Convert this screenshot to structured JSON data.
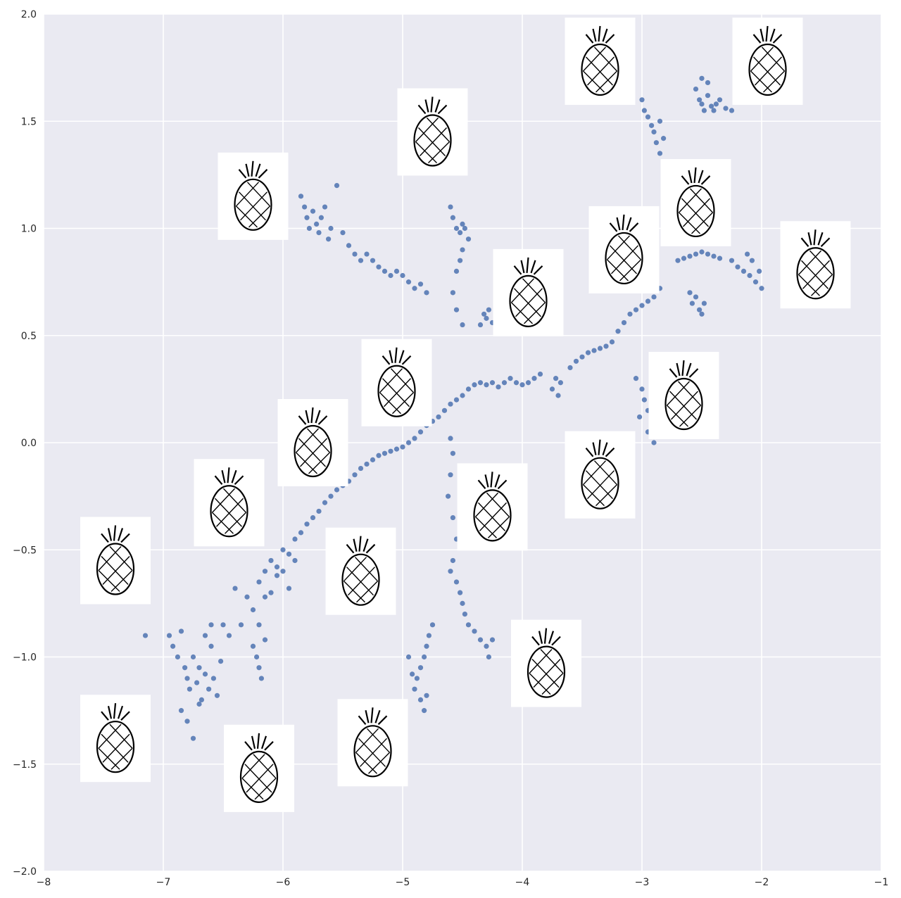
{
  "chart_data": {
    "type": "scatter",
    "title": "",
    "xlabel": "",
    "ylabel": "",
    "xlim": [
      -8,
      -1
    ],
    "ylim": [
      -2,
      2
    ],
    "grid": true,
    "legend": "none",
    "colors": {
      "background": "#eaeaf2",
      "grid": "#ffffff",
      "point": "#4c72b0"
    },
    "x_ticks": [
      {
        "value": -8,
        "label": "−8"
      },
      {
        "value": -7,
        "label": "−7"
      },
      {
        "value": -6,
        "label": "−6"
      },
      {
        "value": -5,
        "label": "−5"
      },
      {
        "value": -4,
        "label": "−4"
      },
      {
        "value": -3,
        "label": "−3"
      },
      {
        "value": -2,
        "label": "−2"
      },
      {
        "value": -1,
        "label": "−1"
      }
    ],
    "y_ticks": [
      {
        "value": -2.0,
        "label": "−2.0"
      },
      {
        "value": -1.5,
        "label": "−1.5"
      },
      {
        "value": -1.0,
        "label": "−1.0"
      },
      {
        "value": -0.5,
        "label": "−0.5"
      },
      {
        "value": 0.0,
        "label": "0.0"
      },
      {
        "value": 0.5,
        "label": "0.5"
      },
      {
        "value": 1.0,
        "label": "1.0"
      },
      {
        "value": 1.5,
        "label": "1.5"
      },
      {
        "value": 2.0,
        "label": "2.0"
      }
    ],
    "series": [
      {
        "points": [
          [
            -7.15,
            -0.9
          ],
          [
            -6.95,
            -0.9
          ],
          [
            -6.92,
            -0.95
          ],
          [
            -6.88,
            -1.0
          ],
          [
            -6.85,
            -0.88
          ],
          [
            -6.82,
            -1.05
          ],
          [
            -6.8,
            -1.1
          ],
          [
            -6.78,
            -1.15
          ],
          [
            -6.75,
            -1.0
          ],
          [
            -6.72,
            -1.12
          ],
          [
            -6.7,
            -1.05
          ],
          [
            -6.68,
            -1.2
          ],
          [
            -6.65,
            -1.08
          ],
          [
            -6.62,
            -1.15
          ],
          [
            -6.6,
            -0.95
          ],
          [
            -6.58,
            -1.1
          ],
          [
            -6.55,
            -1.18
          ],
          [
            -6.52,
            -1.02
          ],
          [
            -6.5,
            -0.85
          ],
          [
            -6.85,
            -1.25
          ],
          [
            -6.8,
            -1.3
          ],
          [
            -6.75,
            -1.38
          ],
          [
            -6.7,
            -1.22
          ],
          [
            -6.65,
            -0.9
          ],
          [
            -6.6,
            -0.85
          ],
          [
            -6.45,
            -0.9
          ],
          [
            -6.35,
            -0.85
          ],
          [
            -6.4,
            -0.68
          ],
          [
            -6.3,
            -0.72
          ],
          [
            -6.25,
            -0.78
          ],
          [
            -6.2,
            -0.65
          ],
          [
            -6.15,
            -0.6
          ],
          [
            -6.1,
            -0.55
          ],
          [
            -6.05,
            -0.62
          ],
          [
            -6.0,
            -0.5
          ],
          [
            -5.95,
            -0.52
          ],
          [
            -5.9,
            -0.45
          ],
          [
            -5.85,
            -0.42
          ],
          [
            -5.8,
            -0.38
          ],
          [
            -5.75,
            -0.35
          ],
          [
            -5.7,
            -0.32
          ],
          [
            -5.65,
            -0.28
          ],
          [
            -5.6,
            -0.25
          ],
          [
            -5.55,
            -0.22
          ],
          [
            -5.5,
            -0.2
          ],
          [
            -5.45,
            -0.18
          ],
          [
            -5.4,
            -0.15
          ],
          [
            -5.35,
            -0.12
          ],
          [
            -5.3,
            -0.1
          ],
          [
            -5.25,
            -0.08
          ],
          [
            -5.2,
            -0.06
          ],
          [
            -5.15,
            -0.05
          ],
          [
            -5.1,
            -0.04
          ],
          [
            -5.05,
            -0.03
          ],
          [
            -5.0,
            -0.02
          ],
          [
            -4.95,
            0.0
          ],
          [
            -4.9,
            0.02
          ],
          [
            -4.85,
            0.05
          ],
          [
            -4.8,
            0.08
          ],
          [
            -4.75,
            0.1
          ],
          [
            -4.7,
            0.12
          ],
          [
            -4.65,
            0.15
          ],
          [
            -4.6,
            0.18
          ],
          [
            -4.55,
            0.2
          ],
          [
            -4.5,
            0.22
          ],
          [
            -4.45,
            0.25
          ],
          [
            -4.4,
            0.27
          ],
          [
            -4.35,
            0.28
          ],
          [
            -4.3,
            0.27
          ],
          [
            -4.25,
            0.28
          ],
          [
            -4.2,
            0.26
          ],
          [
            -4.15,
            0.28
          ],
          [
            -4.1,
            0.3
          ],
          [
            -4.05,
            0.28
          ],
          [
            -4.0,
            0.27
          ],
          [
            -3.95,
            0.28
          ],
          [
            -3.9,
            0.3
          ],
          [
            -3.85,
            0.32
          ],
          [
            -6.25,
            -0.95
          ],
          [
            -6.22,
            -1.0
          ],
          [
            -6.2,
            -1.05
          ],
          [
            -6.18,
            -1.1
          ],
          [
            -6.15,
            -0.92
          ],
          [
            -6.2,
            -0.85
          ],
          [
            -6.15,
            -0.72
          ],
          [
            -6.1,
            -0.7
          ],
          [
            -6.05,
            -0.58
          ],
          [
            -6.0,
            -0.6
          ],
          [
            -5.95,
            -0.68
          ],
          [
            -5.9,
            -0.55
          ],
          [
            -3.75,
            0.25
          ],
          [
            -3.72,
            0.3
          ],
          [
            -3.7,
            0.22
          ],
          [
            -3.68,
            0.28
          ],
          [
            -3.6,
            0.35
          ],
          [
            -3.55,
            0.38
          ],
          [
            -3.5,
            0.4
          ],
          [
            -3.45,
            0.42
          ],
          [
            -3.4,
            0.43
          ],
          [
            -3.35,
            0.44
          ],
          [
            -3.3,
            0.45
          ],
          [
            -3.25,
            0.47
          ],
          [
            -3.2,
            0.52
          ],
          [
            -3.15,
            0.56
          ],
          [
            -3.1,
            0.6
          ],
          [
            -3.05,
            0.62
          ],
          [
            -3.0,
            0.64
          ],
          [
            -2.95,
            0.66
          ],
          [
            -2.9,
            0.68
          ],
          [
            -2.85,
            0.72
          ],
          [
            -3.05,
            0.3
          ],
          [
            -3.0,
            0.25
          ],
          [
            -2.98,
            0.2
          ],
          [
            -2.95,
            0.15
          ],
          [
            -2.92,
            0.1
          ],
          [
            -2.95,
            0.05
          ],
          [
            -2.9,
            0.0
          ],
          [
            -3.02,
            0.12
          ],
          [
            -4.6,
            0.02
          ],
          [
            -4.58,
            -0.05
          ],
          [
            -4.6,
            -0.15
          ],
          [
            -4.62,
            -0.25
          ],
          [
            -4.58,
            -0.35
          ],
          [
            -4.55,
            -0.45
          ],
          [
            -4.58,
            -0.55
          ],
          [
            -4.6,
            -0.6
          ],
          [
            -4.55,
            -0.65
          ],
          [
            -4.52,
            -0.7
          ],
          [
            -4.5,
            -0.75
          ],
          [
            -4.48,
            -0.8
          ],
          [
            -4.45,
            -0.85
          ],
          [
            -4.4,
            -0.88
          ],
          [
            -4.35,
            -0.92
          ],
          [
            -4.3,
            -0.95
          ],
          [
            -4.28,
            -1.0
          ],
          [
            -4.25,
            -0.92
          ],
          [
            -4.75,
            -0.85
          ],
          [
            -4.78,
            -0.9
          ],
          [
            -4.8,
            -0.95
          ],
          [
            -4.82,
            -1.0
          ],
          [
            -4.85,
            -1.05
          ],
          [
            -4.88,
            -1.1
          ],
          [
            -4.9,
            -1.15
          ],
          [
            -4.85,
            -1.2
          ],
          [
            -4.82,
            -1.25
          ],
          [
            -4.8,
            -1.18
          ],
          [
            -4.92,
            -1.08
          ],
          [
            -4.95,
            -1.0
          ],
          [
            -5.85,
            1.15
          ],
          [
            -5.82,
            1.1
          ],
          [
            -5.8,
            1.05
          ],
          [
            -5.78,
            1.0
          ],
          [
            -5.75,
            1.08
          ],
          [
            -5.72,
            1.02
          ],
          [
            -5.7,
            0.98
          ],
          [
            -5.68,
            1.05
          ],
          [
            -5.65,
            1.1
          ],
          [
            -5.62,
            0.95
          ],
          [
            -5.6,
            1.0
          ],
          [
            -5.55,
            1.2
          ],
          [
            -5.5,
            0.98
          ],
          [
            -5.45,
            0.92
          ],
          [
            -5.4,
            0.88
          ],
          [
            -5.35,
            0.85
          ],
          [
            -5.3,
            0.88
          ],
          [
            -5.25,
            0.85
          ],
          [
            -5.2,
            0.82
          ],
          [
            -5.15,
            0.8
          ],
          [
            -5.1,
            0.78
          ],
          [
            -5.05,
            0.8
          ],
          [
            -5.0,
            0.78
          ],
          [
            -4.95,
            0.75
          ],
          [
            -4.9,
            0.72
          ],
          [
            -4.85,
            0.74
          ],
          [
            -4.8,
            0.7
          ],
          [
            -4.6,
            1.1
          ],
          [
            -4.58,
            1.05
          ],
          [
            -4.55,
            1.0
          ],
          [
            -4.52,
            0.98
          ],
          [
            -4.5,
            1.02
          ],
          [
            -4.48,
            1.0
          ],
          [
            -4.45,
            0.95
          ],
          [
            -4.5,
            0.9
          ],
          [
            -4.52,
            0.85
          ],
          [
            -4.55,
            0.8
          ],
          [
            -4.58,
            0.7
          ],
          [
            -4.55,
            0.62
          ],
          [
            -4.5,
            0.55
          ],
          [
            -4.35,
            0.55
          ],
          [
            -4.32,
            0.6
          ],
          [
            -4.3,
            0.58
          ],
          [
            -4.28,
            0.62
          ],
          [
            -4.25,
            0.56
          ],
          [
            -3.0,
            1.6
          ],
          [
            -2.98,
            1.55
          ],
          [
            -2.95,
            1.52
          ],
          [
            -2.92,
            1.48
          ],
          [
            -2.9,
            1.45
          ],
          [
            -2.88,
            1.4
          ],
          [
            -2.85,
            1.35
          ],
          [
            -2.82,
            1.3
          ],
          [
            -2.8,
            1.25
          ],
          [
            -2.78,
            1.2
          ],
          [
            -2.75,
            1.15
          ],
          [
            -2.72,
            1.1
          ],
          [
            -2.7,
            1.05
          ],
          [
            -2.68,
            1.0
          ],
          [
            -2.65,
            0.95
          ],
          [
            -2.85,
            1.5
          ],
          [
            -2.82,
            1.42
          ],
          [
            -2.7,
            0.85
          ],
          [
            -2.65,
            0.86
          ],
          [
            -2.6,
            0.87
          ],
          [
            -2.55,
            0.88
          ],
          [
            -2.5,
            0.89
          ],
          [
            -2.45,
            0.88
          ],
          [
            -2.4,
            0.87
          ],
          [
            -2.35,
            0.86
          ],
          [
            -2.25,
            0.85
          ],
          [
            -2.2,
            0.82
          ],
          [
            -2.15,
            0.8
          ],
          [
            -2.1,
            0.78
          ],
          [
            -2.05,
            0.75
          ],
          [
            -2.0,
            0.72
          ],
          [
            -2.02,
            0.8
          ],
          [
            -2.08,
            0.85
          ],
          [
            -2.12,
            0.88
          ],
          [
            -2.6,
            0.7
          ],
          [
            -2.58,
            0.65
          ],
          [
            -2.55,
            0.68
          ],
          [
            -2.52,
            0.62
          ],
          [
            -2.5,
            0.6
          ],
          [
            -2.48,
            0.65
          ],
          [
            -2.55,
            1.65
          ],
          [
            -2.52,
            1.6
          ],
          [
            -2.5,
            1.58
          ],
          [
            -2.48,
            1.55
          ],
          [
            -2.45,
            1.62
          ],
          [
            -2.42,
            1.57
          ],
          [
            -2.4,
            1.55
          ],
          [
            -2.38,
            1.58
          ],
          [
            -2.35,
            1.6
          ],
          [
            -2.3,
            1.56
          ],
          [
            -2.25,
            1.55
          ],
          [
            -2.5,
            1.7
          ],
          [
            -2.45,
            1.68
          ]
        ]
      }
    ],
    "thumbnails": [
      {
        "name": "pineapple-sketch-1",
        "x": -3.35,
        "y": 1.78
      },
      {
        "name": "pineapple-sketch-2",
        "x": -1.95,
        "y": 1.78
      },
      {
        "name": "pineapple-sketch-3",
        "x": -4.75,
        "y": 1.45
      },
      {
        "name": "pineapple-sketch-4",
        "x": -6.25,
        "y": 1.15
      },
      {
        "name": "pineapple-sketch-5",
        "x": -2.55,
        "y": 1.12
      },
      {
        "name": "pineapple-sketch-6",
        "x": -3.15,
        "y": 0.9
      },
      {
        "name": "pineapple-sketch-7",
        "x": -1.55,
        "y": 0.83
      },
      {
        "name": "pineapple-sketch-8",
        "x": -3.95,
        "y": 0.7
      },
      {
        "name": "pineapple-sketch-9",
        "x": -2.65,
        "y": 0.22
      },
      {
        "name": "pineapple-sketch-10",
        "x": -5.05,
        "y": 0.28
      },
      {
        "name": "pineapple-sketch-11",
        "x": -5.75,
        "y": 0.0
      },
      {
        "name": "pineapple-sketch-12",
        "x": -3.35,
        "y": -0.15
      },
      {
        "name": "pineapple-sketch-13",
        "x": -4.25,
        "y": -0.3
      },
      {
        "name": "pineapple-sketch-14",
        "x": -6.45,
        "y": -0.28
      },
      {
        "name": "pineapple-sketch-15",
        "x": -7.4,
        "y": -0.55
      },
      {
        "name": "pineapple-sketch-16",
        "x": -5.35,
        "y": -0.6
      },
      {
        "name": "pineapple-sketch-17",
        "x": -3.8,
        "y": -1.03
      },
      {
        "name": "pineapple-sketch-18",
        "x": -7.4,
        "y": -1.38
      },
      {
        "name": "pineapple-sketch-19",
        "x": -5.25,
        "y": -1.4
      },
      {
        "name": "pineapple-sketch-20",
        "x": -6.2,
        "y": -1.52
      }
    ]
  }
}
